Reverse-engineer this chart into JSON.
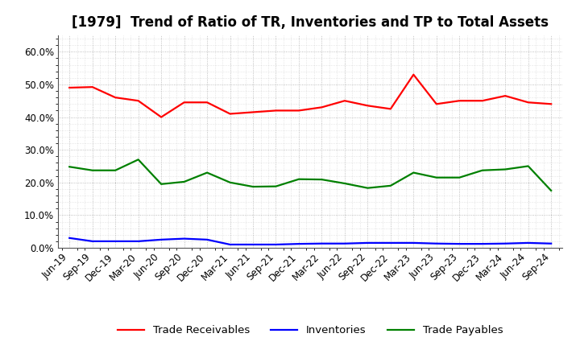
{
  "title": "[1979]  Trend of Ratio of TR, Inventories and TP to Total Assets",
  "x_labels": [
    "Jun-19",
    "Sep-19",
    "Dec-19",
    "Mar-20",
    "Jun-20",
    "Sep-20",
    "Dec-20",
    "Mar-21",
    "Jun-21",
    "Sep-21",
    "Dec-21",
    "Mar-22",
    "Jun-22",
    "Sep-22",
    "Dec-22",
    "Mar-23",
    "Jun-23",
    "Sep-23",
    "Dec-23",
    "Mar-24",
    "Jun-24",
    "Sep-24"
  ],
  "trade_receivables": [
    0.49,
    0.492,
    0.46,
    0.45,
    0.4,
    0.445,
    0.445,
    0.41,
    0.415,
    0.42,
    0.42,
    0.43,
    0.45,
    0.435,
    0.425,
    0.53,
    0.44,
    0.45,
    0.45,
    0.465,
    0.445,
    0.44
  ],
  "inventories": [
    0.03,
    0.02,
    0.02,
    0.02,
    0.025,
    0.028,
    0.025,
    0.01,
    0.01,
    0.01,
    0.012,
    0.013,
    0.013,
    0.015,
    0.015,
    0.015,
    0.013,
    0.012,
    0.012,
    0.013,
    0.015,
    0.013
  ],
  "trade_payables": [
    0.248,
    0.237,
    0.237,
    0.27,
    0.195,
    0.202,
    0.23,
    0.2,
    0.187,
    0.188,
    0.21,
    0.209,
    0.197,
    0.183,
    0.19,
    0.23,
    0.215,
    0.215,
    0.237,
    0.24,
    0.25,
    0.175
  ],
  "tr_color": "#FF0000",
  "inv_color": "#0000FF",
  "tp_color": "#008000",
  "ylim": [
    0.0,
    0.65
  ],
  "yticks": [
    0.0,
    0.1,
    0.2,
    0.3,
    0.4,
    0.5,
    0.6
  ],
  "legend_labels": [
    "Trade Receivables",
    "Inventories",
    "Trade Payables"
  ],
  "background_color": "#FFFFFF",
  "grid_color": "#999999",
  "title_fontsize": 12,
  "label_fontsize": 8.5,
  "legend_fontsize": 9.5,
  "line_width": 1.6
}
